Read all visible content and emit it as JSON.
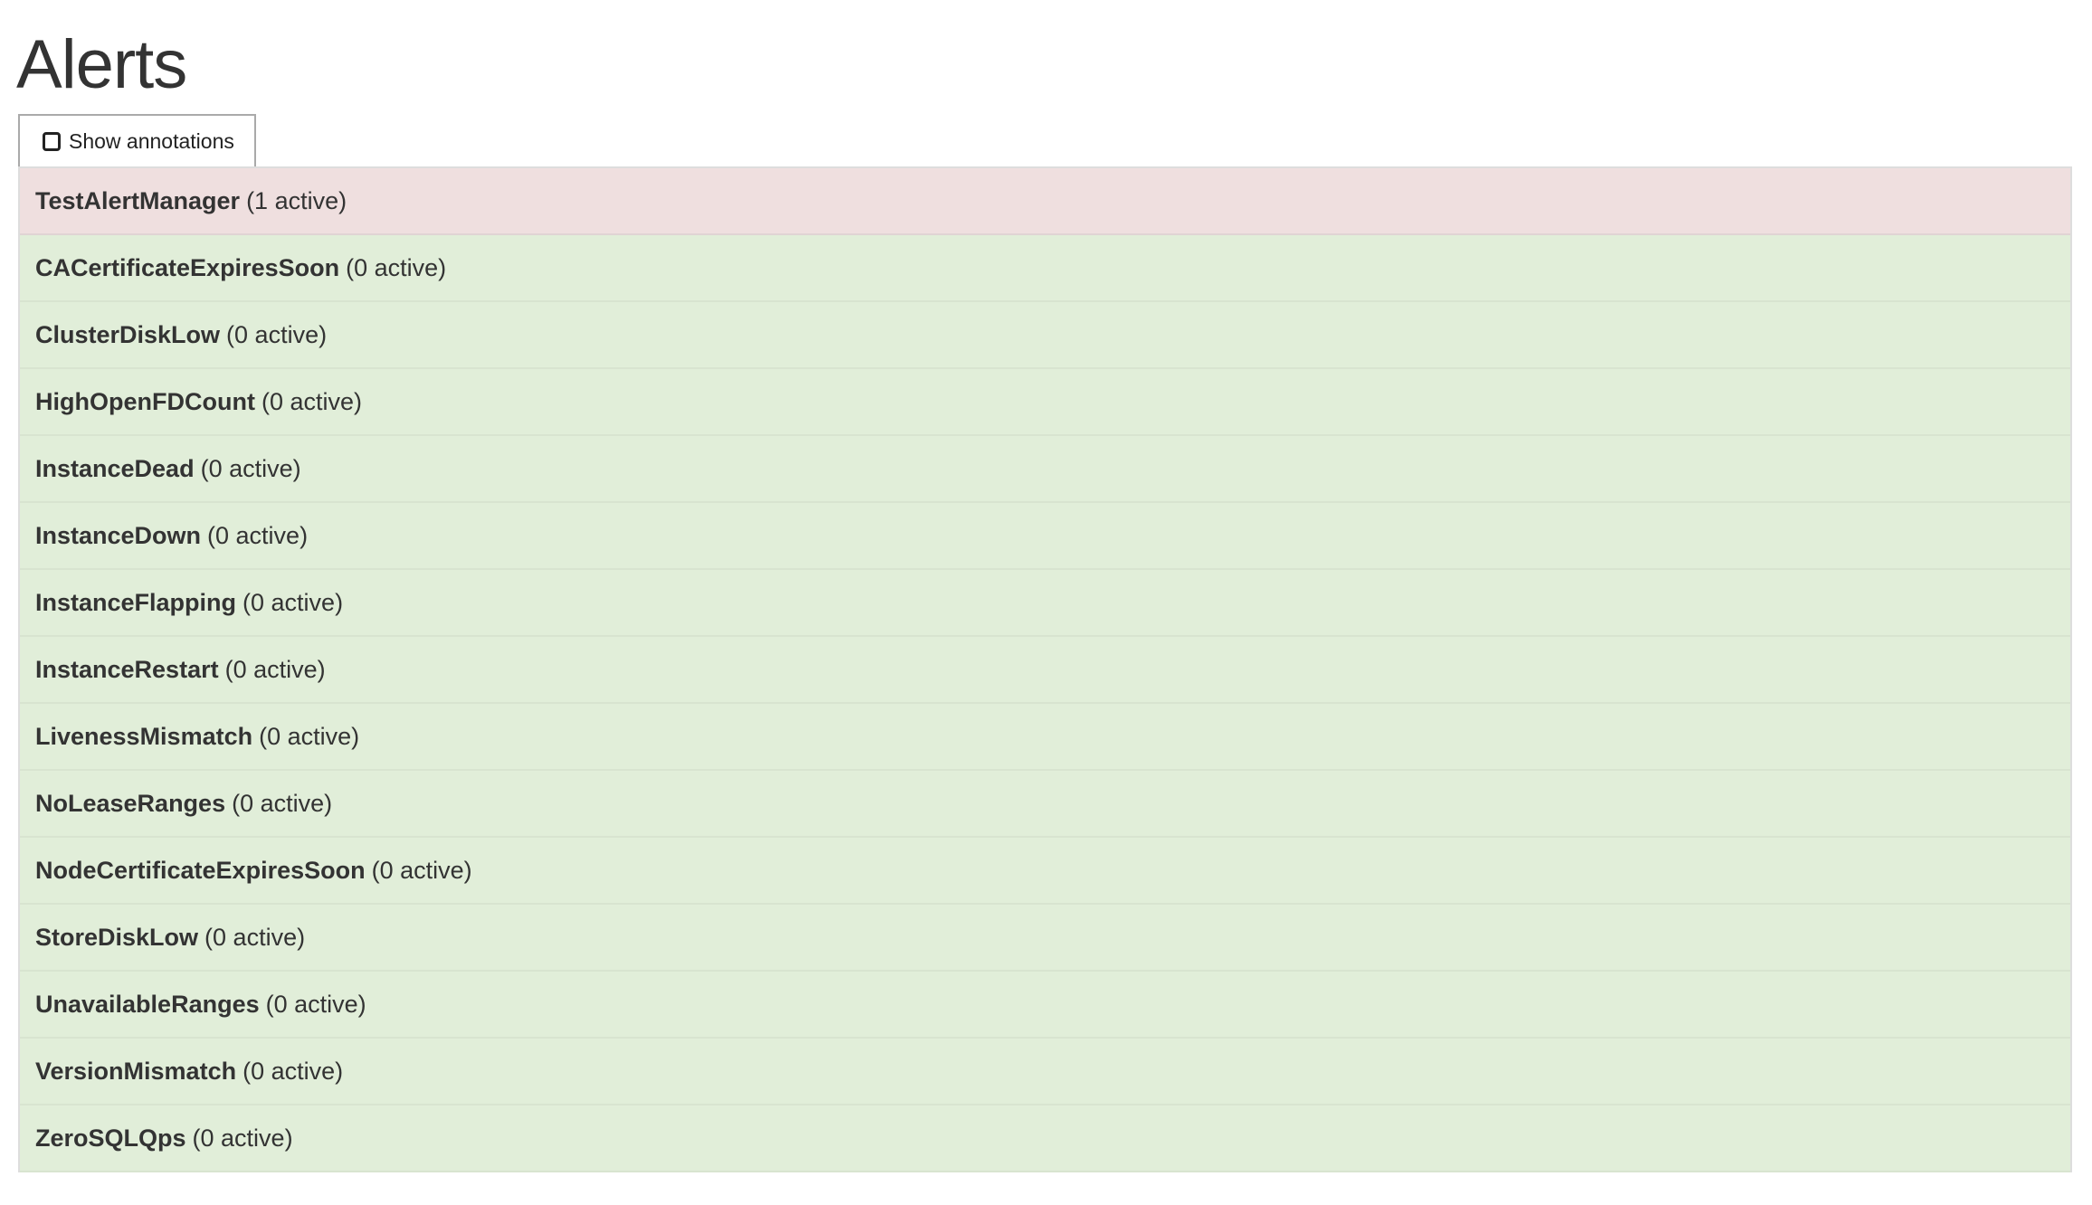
{
  "page": {
    "title": "Alerts"
  },
  "toolbar": {
    "show_annotations_label": "Show annotations",
    "show_annotations_checked": false
  },
  "colors": {
    "firing": "#efdfdf",
    "inactive": "#e1eed9",
    "text": "#333333"
  },
  "alerts": [
    {
      "name": "TestAlertManager",
      "count": "(1 active)",
      "state": "firing"
    },
    {
      "name": "CACertificateExpiresSoon",
      "count": "(0 active)",
      "state": "inactive"
    },
    {
      "name": "ClusterDiskLow",
      "count": "(0 active)",
      "state": "inactive"
    },
    {
      "name": "HighOpenFDCount",
      "count": "(0 active)",
      "state": "inactive"
    },
    {
      "name": "InstanceDead",
      "count": "(0 active)",
      "state": "inactive"
    },
    {
      "name": "InstanceDown",
      "count": "(0 active)",
      "state": "inactive"
    },
    {
      "name": "InstanceFlapping",
      "count": "(0 active)",
      "state": "inactive"
    },
    {
      "name": "InstanceRestart",
      "count": "(0 active)",
      "state": "inactive"
    },
    {
      "name": "LivenessMismatch",
      "count": "(0 active)",
      "state": "inactive"
    },
    {
      "name": "NoLeaseRanges",
      "count": "(0 active)",
      "state": "inactive"
    },
    {
      "name": "NodeCertificateExpiresSoon",
      "count": "(0 active)",
      "state": "inactive"
    },
    {
      "name": "StoreDiskLow",
      "count": "(0 active)",
      "state": "inactive"
    },
    {
      "name": "UnavailableRanges",
      "count": "(0 active)",
      "state": "inactive"
    },
    {
      "name": "VersionMismatch",
      "count": "(0 active)",
      "state": "inactive"
    },
    {
      "name": "ZeroSQLQps",
      "count": "(0 active)",
      "state": "inactive"
    }
  ]
}
